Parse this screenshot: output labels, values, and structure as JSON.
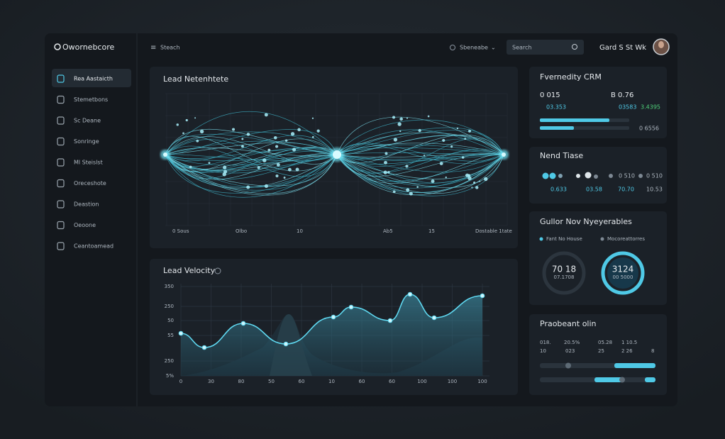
{
  "header": {
    "logo": "Owornebcore",
    "breadcrumb": "Steach",
    "filter": "Sbeneabe",
    "search": "Search",
    "user": "Gard S St Wk"
  },
  "sidebar": {
    "items": [
      "Rea Aastaicth",
      "Stemetbons",
      "Sc Deane",
      "Sonringe",
      "Ml Steislst",
      "Oreceshote",
      "Deastion",
      "Oeoone",
      "Ceantoamead"
    ]
  },
  "network": {
    "title": "Lead Netenhtete",
    "axis_labels": [
      "0 Sous",
      "Olbo",
      "10",
      "Ab5",
      "15",
      "Dostable 1tate"
    ]
  },
  "velocity": {
    "title": "Lead Velocity",
    "y_labels": [
      "350",
      "250",
      "50",
      "55",
      "250",
      "5%"
    ],
    "x_labels": [
      "0",
      "30",
      "80",
      "50",
      "60",
      "10",
      "60",
      "60",
      "100",
      "100",
      "100"
    ]
  },
  "crm": {
    "title": "Fvernedity CRM",
    "stat_a": "0 015",
    "stat_b": "B 0.76",
    "sub_a": "03.353",
    "sub_b": "03583",
    "sub_c": "3.4395",
    "bar_label": "0 6556"
  },
  "trend": {
    "title": "Nend Tiase",
    "values": [
      "0 510",
      "0 510"
    ],
    "subs": [
      "0.633",
      "03.58",
      "70.70",
      "10.53"
    ]
  },
  "deliverables": {
    "title": "Gullor Nov Nyeyerables",
    "legend": [
      "Fant No House",
      "Mocoreattorres"
    ],
    "ring_a": [
      "70 18",
      "07.1708"
    ],
    "ring_b": [
      "3124",
      "00 5000"
    ]
  },
  "pipeline": {
    "title": "Praobeant olin",
    "row1": [
      "018.",
      "20.5%",
      "05.28",
      "1 10.5"
    ],
    "row2": [
      "10",
      "023",
      "25",
      "2 26",
      "8"
    ]
  }
}
